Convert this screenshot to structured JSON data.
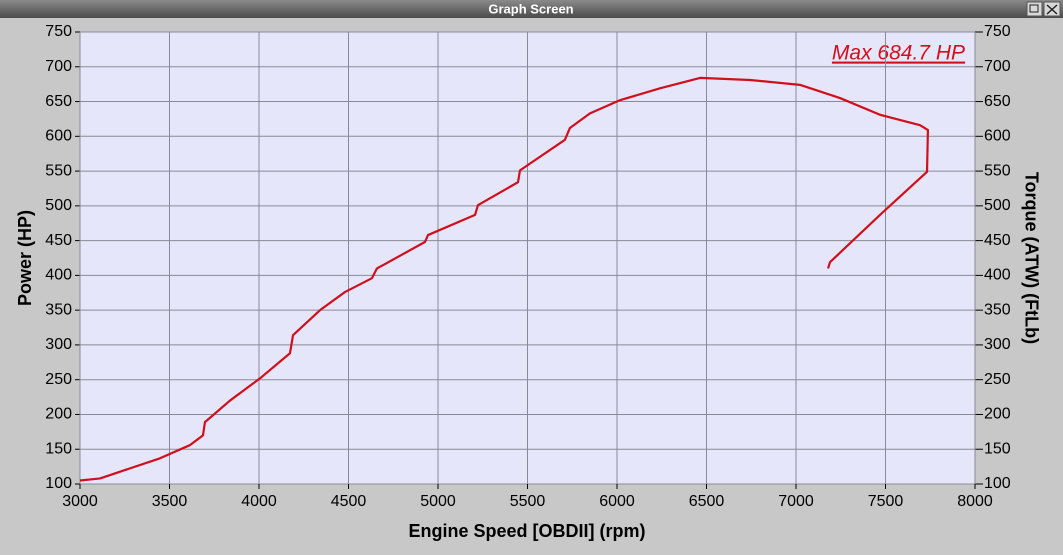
{
  "window": {
    "title": "Graph Screen"
  },
  "chart_data": {
    "type": "line",
    "annotation": "Max 684.7 HP",
    "xlabel": "Engine Speed [OBDII] (rpm)",
    "ylabel": "Power (HP)",
    "y2label": "Torque (ATW) (FtLb)",
    "color": "#d10f1c",
    "grid": true,
    "x": [
      3000,
      3112,
      3251,
      3447,
      3615,
      3687,
      3698,
      3838,
      4006,
      4173,
      4190,
      4341,
      4480,
      4631,
      4659,
      4927,
      4944,
      5207,
      5223,
      5447,
      5458,
      5709,
      5737,
      5849,
      6017,
      6240,
      6464,
      6743,
      7022,
      7246,
      7469,
      7693,
      7737,
      7732,
      7469,
      7190,
      7179
    ],
    "values": [
      105,
      108,
      120,
      137,
      156,
      170,
      189,
      220,
      252,
      288,
      314,
      350,
      376,
      396,
      410,
      448,
      458,
      487,
      501,
      534,
      551,
      595,
      612,
      633,
      652,
      669,
      684,
      681,
      674,
      655,
      631,
      616,
      609,
      549,
      487,
      419,
      410
    ],
    "xlim": [
      3000,
      8000
    ],
    "xticks": [
      3000,
      3500,
      4000,
      4500,
      5000,
      5500,
      6000,
      6500,
      7000,
      7500,
      8000
    ],
    "ylim": [
      100,
      750
    ],
    "yticks": [
      100,
      150,
      200,
      250,
      300,
      350,
      400,
      450,
      500,
      550,
      600,
      650,
      700,
      750
    ],
    "y2lim": [
      100,
      750
    ],
    "y2ticks": [
      100,
      150,
      200,
      250,
      300,
      350,
      400,
      450,
      500,
      550,
      600,
      650,
      700,
      750
    ]
  }
}
